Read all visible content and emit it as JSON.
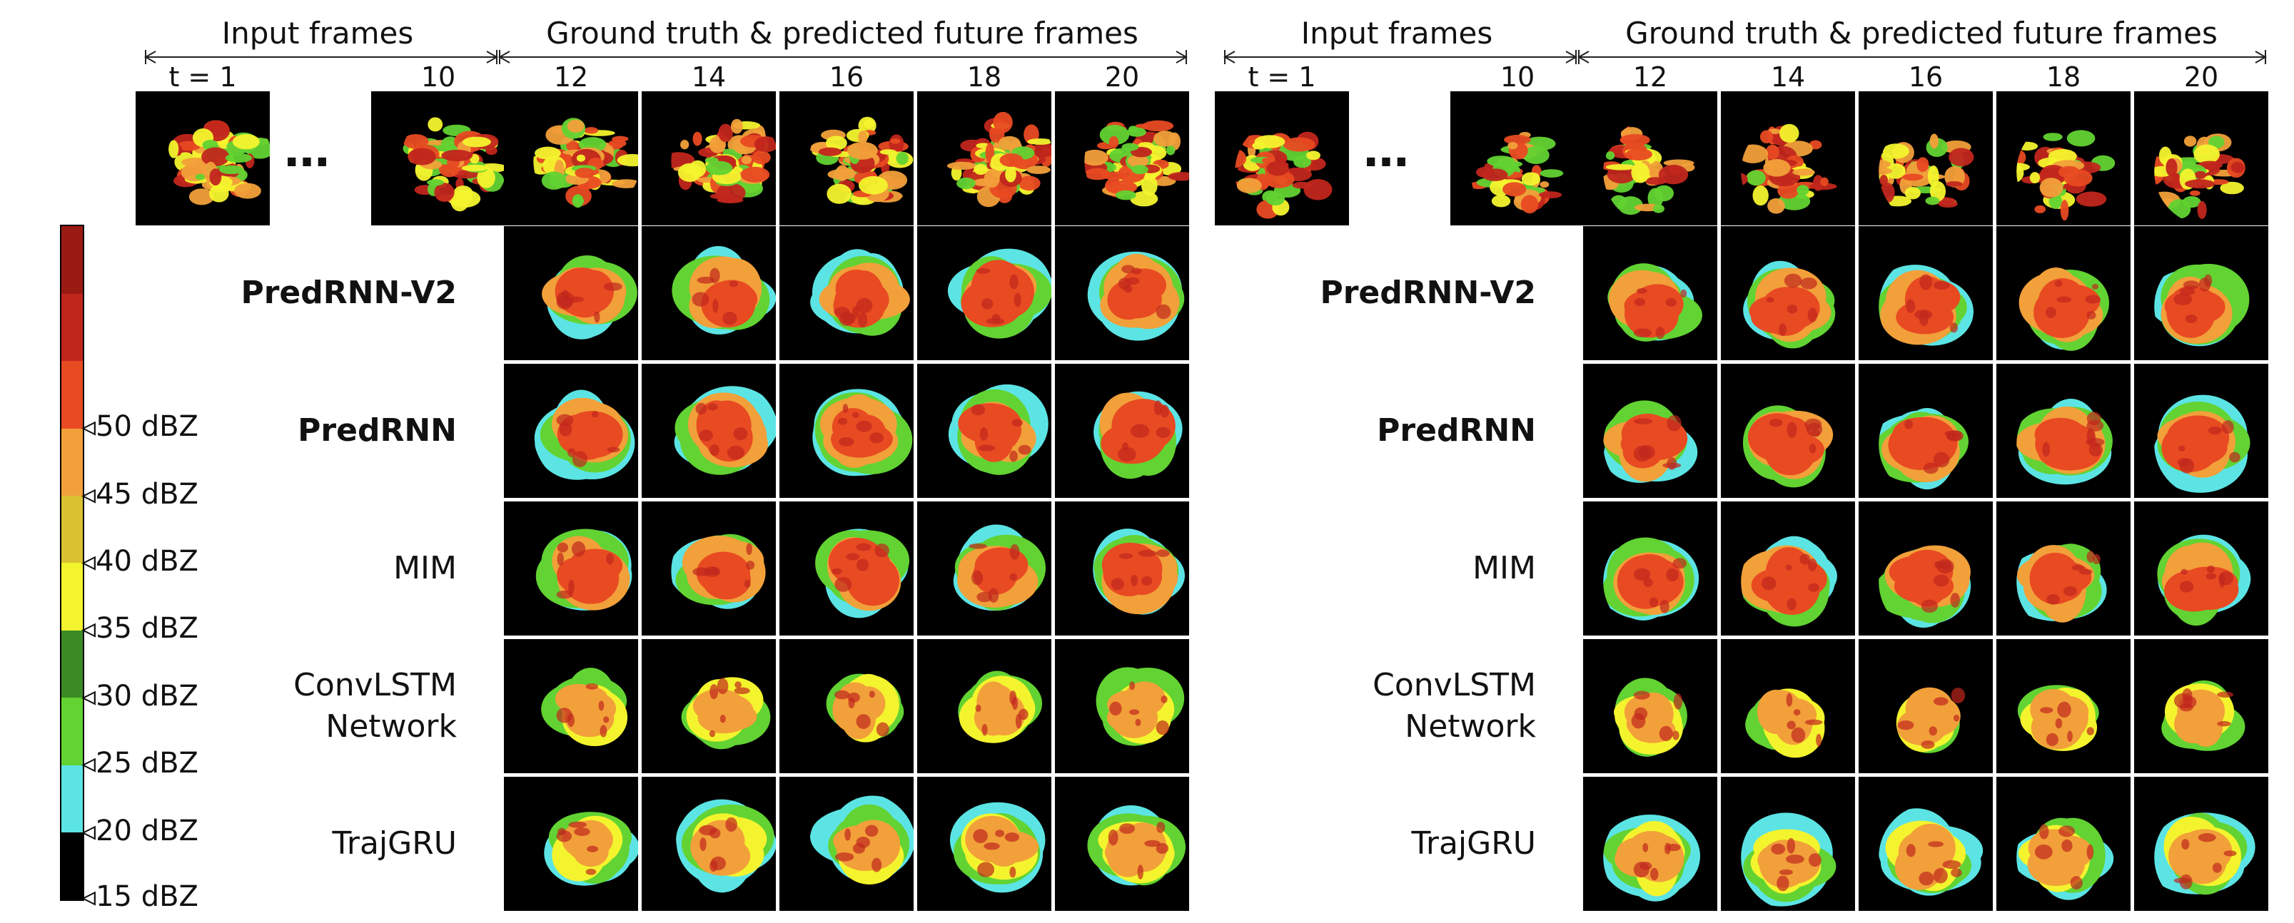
{
  "legend": {
    "colors": [
      "#000000",
      "#5ce4e4",
      "#62d332",
      "#3b8a24",
      "#f4f42e",
      "#d9c132",
      "#f2a03a",
      "#e84a22",
      "#c1261c",
      "#9a1a14"
    ],
    "ticks": [
      "15 dBZ",
      "20 dBZ",
      "25 dBZ",
      "30 dBZ",
      "35 dBZ",
      "40 dBZ",
      "45 dBZ",
      "50 dBZ"
    ]
  },
  "panels": [
    {
      "input_header": "Input frames",
      "future_header": "Ground truth & predicted future frames",
      "input_labels": [
        "t = 1",
        "10"
      ],
      "ellipsis": "…",
      "future_labels": [
        "12",
        "14",
        "16",
        "18",
        "20"
      ]
    },
    {
      "input_header": "Input frames",
      "future_header": "Ground truth & predicted future frames",
      "input_labels": [
        "t = 1",
        "10"
      ],
      "ellipsis": "…",
      "future_labels": [
        "12",
        "14",
        "16",
        "18",
        "20"
      ]
    }
  ],
  "rows": [
    {
      "label": "PredRNN-V2",
      "bold": true
    },
    {
      "label": "PredRNN",
      "bold": true
    },
    {
      "label": "MIM",
      "bold": false
    },
    {
      "label": "ConvLSTM\nNetwork",
      "bold": false
    },
    {
      "label": "TrajGRU",
      "bold": false
    }
  ]
}
